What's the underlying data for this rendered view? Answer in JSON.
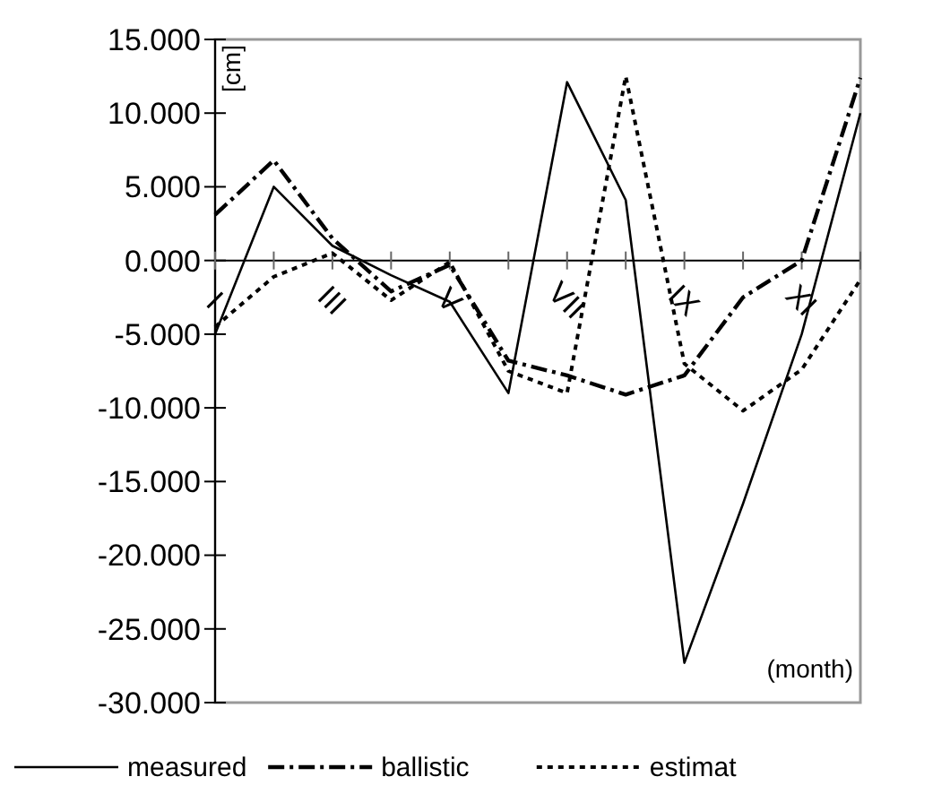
{
  "chart_data": {
    "type": "line",
    "xlabel": "(month)",
    "ylabel": "[cm]",
    "categories": [
      "I",
      null,
      "III",
      null,
      "V",
      null,
      "VII",
      null,
      "IX",
      null,
      "XI",
      null
    ],
    "ylim": [
      -30,
      15
    ],
    "yticks": [
      {
        "value": 15,
        "label": "15.000"
      },
      {
        "value": 10,
        "label": "10.000"
      },
      {
        "value": 5,
        "label": "5.000"
      },
      {
        "value": 0,
        "label": "0.000"
      },
      {
        "value": -5,
        "label": "-5.000"
      },
      {
        "value": -10,
        "label": "-10.000"
      },
      {
        "value": -15,
        "label": "-15.000"
      },
      {
        "value": -20,
        "label": "-20.000"
      },
      {
        "value": -25,
        "label": "-25.000"
      },
      {
        "value": -30,
        "label": "-30.000"
      }
    ],
    "grid": false,
    "legend": "bottom",
    "marker": "none",
    "series": [
      {
        "name": "measured",
        "color": "#000000",
        "line_style": "solid",
        "values": [
          -5,
          5,
          1,
          -1,
          -2.8,
          -9,
          12.1,
          4.1,
          -27.3,
          -16.5,
          -5,
          10
        ]
      },
      {
        "name": "ballistic",
        "color": "#000000",
        "line_style": "dashed",
        "values": [
          3.1,
          6.8,
          1.5,
          -2.1,
          -0.3,
          -6.8,
          -7.8,
          -9.1,
          -7.8,
          -2.5,
          0,
          12.4
        ]
      },
      {
        "name": "estimat",
        "color": "#000000",
        "line_style": "dotted",
        "values": [
          -4.5,
          -1.1,
          0.5,
          -2.7,
          -0.1,
          -7.5,
          -9,
          12.5,
          -7,
          -10.2,
          -7.4,
          -1.3
        ]
      }
    ]
  }
}
